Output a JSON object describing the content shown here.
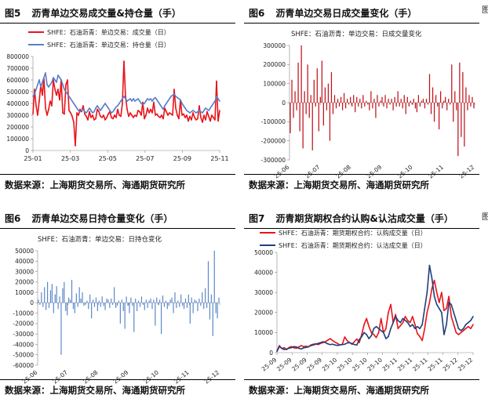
{
  "page": {
    "edge_marks": [
      "图",
      "图"
    ]
  },
  "panels": [
    {
      "fig_no": "图5",
      "title": "沥青单边交易成交量&持仓量（手）",
      "source": "数据来源：上海期货交易所、海通期货研究所",
      "chart_data": {
        "type": "line",
        "legend": [
          "SHFE：石油沥青：单边交易：成交量（日）",
          "SHFE：石油沥青：单边交易：持仓量（日）"
        ],
        "legend_position": "top-left",
        "colors": [
          "#e8141a",
          "#5b7ec6"
        ],
        "ylim": [
          0,
          800000
        ],
        "yticks": [
          0,
          100000,
          200000,
          300000,
          400000,
          500000,
          600000,
          700000,
          800000
        ],
        "xticks": [
          "25-01",
          "25-03",
          "25-05",
          "25-07",
          "25-09",
          "25-11"
        ],
        "grid": false,
        "series": [
          {
            "name": "SHFE：石油沥青：单边交易：成交量（日）",
            "values": [
              310000,
              520000,
              380000,
              300000,
              420000,
              560000,
              470000,
              610000,
              360000,
              300000,
              350000,
              420000,
              380000,
              600000,
              520000,
              470000,
              520000,
              430000,
              600000,
              320000,
              310000,
              560000,
              600000,
              340000,
              320000,
              290000,
              240000,
              40000,
              320000,
              300000,
              350000,
              330000,
              380000,
              310000,
              290000,
              260000,
              330000,
              280000,
              300000,
              260000,
              270000,
              350000,
              330000,
              290000,
              280000,
              300000,
              260000,
              280000,
              310000,
              330000,
              280000,
              270000,
              300000,
              280000,
              350000,
              300000,
              290000,
              400000,
              760000,
              460000,
              350000,
              290000,
              320000,
              300000,
              280000,
              300000,
              290000,
              340000,
              330000,
              300000,
              410000,
              270000,
              300000,
              360000,
              320000,
              350000,
              320000,
              410000,
              300000,
              310000,
              290000,
              280000,
              300000,
              270000,
              360000,
              330000,
              300000,
              320000,
              310000,
              300000,
              520000,
              360000,
              300000,
              270000,
              430000,
              300000,
              310000,
              280000,
              300000,
              250000,
              290000,
              260000,
              320000,
              280000,
              260000,
              270000,
              380000,
              280000,
              240000,
              300000,
              260000,
              330000,
              290000,
              250000,
              300000,
              280000,
              260000,
              590000,
              250000,
              340000
            ]
          },
          {
            "name": "SHFE：石油沥青：单边交易：持仓量（日）",
            "values": [
              460000,
              480000,
              520000,
              560000,
              600000,
              540000,
              580000,
              620000,
              660000,
              560000,
              540000,
              560000,
              580000,
              620000,
              600000,
              580000,
              640000,
              620000,
              600000,
              560000,
              520000,
              500000,
              480000,
              460000,
              440000,
              420000,
              400000,
              380000,
              360000,
              340000,
              330000,
              340000,
              350000,
              330000,
              320000,
              340000,
              360000,
              340000,
              320000,
              330000,
              360000,
              380000,
              360000,
              340000,
              360000,
              380000,
              400000,
              380000,
              360000,
              340000,
              320000,
              330000,
              350000,
              370000,
              380000,
              400000,
              420000,
              440000,
              460000,
              440000,
              420000,
              430000,
              440000,
              420000,
              440000,
              420000,
              430000,
              440000,
              420000,
              400000,
              390000,
              400000,
              420000,
              440000,
              430000,
              440000,
              420000,
              440000,
              450000,
              430000,
              410000,
              390000,
              370000,
              350000,
              380000,
              400000,
              420000,
              440000,
              460000,
              470000,
              480000,
              460000,
              450000,
              440000,
              430000,
              400000,
              380000,
              360000,
              340000,
              330000,
              320000,
              330000,
              340000,
              330000,
              320000,
              330000,
              340000,
              330000,
              320000,
              340000,
              360000,
              350000,
              340000,
              360000,
              380000,
              400000,
              420000,
              460000,
              440000,
              420000
            ]
          }
        ]
      }
    },
    {
      "fig_no": "图6",
      "title": "沥青单边交易日成交量变化（手）",
      "source": "数据来源：上海期货交易所、海通期货研究所",
      "chart_data": {
        "type": "bar",
        "legend": [
          "SHFE：石油沥青：单边交易：日成交量变化"
        ],
        "legend_position": "top-center",
        "colors": [
          "#c0141c"
        ],
        "ylim": [
          -300000,
          300000
        ],
        "yticks": [
          -300000,
          -200000,
          -100000,
          0,
          100000,
          200000,
          300000
        ],
        "xticks": [
          "25-06",
          "25-07",
          "25-08",
          "25-09",
          "25-10",
          "25-11",
          "25-12"
        ],
        "grid": false,
        "series": [
          {
            "name": "SHFE：石油沥青：单边交易：日成交量变化",
            "values": [
              -160000,
              120000,
              -80000,
              60000,
              -40000,
              210000,
              -150000,
              300000,
              -240000,
              60000,
              -60000,
              200000,
              -80000,
              40000,
              -250000,
              120000,
              -20000,
              180000,
              -150000,
              30000,
              220000,
              -120000,
              80000,
              -40000,
              100000,
              -200000,
              160000,
              -60000,
              40000,
              -30000,
              20000,
              -20000,
              30000,
              -40000,
              50000,
              -30000,
              20000,
              -10000,
              30000,
              -20000,
              40000,
              -50000,
              30000,
              -20000,
              20000,
              -30000,
              40000,
              -20000,
              10000,
              -10000,
              -40000,
              60000,
              -30000,
              20000,
              -80000,
              40000,
              -20000,
              10000,
              30000,
              -20000,
              40000,
              -30000,
              20000,
              -10000,
              20000,
              -40000,
              30000,
              -20000,
              60000,
              -20000,
              20000,
              -30000,
              40000,
              -60000,
              30000,
              -20000,
              10000,
              -10000,
              20000,
              -30000,
              -50000,
              40000,
              -20000,
              10000,
              20000,
              -30000,
              20000,
              -10000,
              150000,
              -60000,
              80000,
              -100000,
              40000,
              -20000,
              -140000,
              60000,
              -30000,
              10000,
              30000,
              -40000,
              20000,
              -10000,
              200000,
              -100000,
              60000,
              -40000,
              -280000,
              210000,
              -180000,
              160000,
              -230000,
              80000,
              -40000,
              40000,
              -20000,
              30000,
              -30000
            ]
          }
        ]
      }
    },
    {
      "fig_no": "图6",
      "title": "沥青单边交易日持仓量变化（手）",
      "source": "数据来源：上海期货交易所、海通期货研究所",
      "chart_data": {
        "type": "bar",
        "legend": [
          "SHFE：石油沥青：单边交易：日持仓变化"
        ],
        "legend_position": "top-left",
        "colors": [
          "#5b88c8"
        ],
        "ylim": [
          -60000,
          50000
        ],
        "yticks": [
          -60000,
          -50000,
          -40000,
          -30000,
          -20000,
          -10000,
          0,
          10000,
          20000,
          30000,
          40000,
          50000
        ],
        "xticks": [
          "25-06",
          "25-07",
          "25-08",
          "25-09",
          "25-10",
          "25-11",
          "25-12"
        ],
        "grid": false,
        "series": [
          {
            "name": "SHFE：石油沥青：单边交易：日持仓变化",
            "values": [
              3000,
              -2000,
              10000,
              -4000,
              15000,
              -7000,
              20000,
              -5000,
              12000,
              18000,
              -10000,
              8000,
              16000,
              -6000,
              6000,
              -50000,
              14000,
              20000,
              -8000,
              -12000,
              5000,
              3000,
              22000,
              -6000,
              -10000,
              9000,
              -4000,
              15000,
              4000,
              10000,
              -3000,
              -2000,
              2000,
              -6000,
              8000,
              -15000,
              3000,
              -4000,
              5000,
              -8000,
              2000,
              -4000,
              6000,
              -3000,
              -7000,
              4000,
              3000,
              -5000,
              4000,
              -2000,
              15000,
              -5000,
              -3000,
              2000,
              -20000,
              3000,
              -8000,
              -25000,
              6000,
              -3000,
              -10000,
              5000,
              -3000,
              -28000,
              4000,
              -8000,
              2000,
              -4000,
              6000,
              -2000,
              -7000,
              3000,
              -5000,
              2000,
              4000,
              -6000,
              3000,
              -22000,
              5000,
              -2000,
              3000,
              -30000,
              7000,
              -4000,
              2000,
              -6000,
              -3000,
              3000,
              5000,
              -10000,
              10000,
              -5000,
              2000,
              -4000,
              8000,
              -3000,
              -6000,
              4000,
              -5000,
              8000,
              -20000,
              5000,
              -10000,
              3000,
              2000,
              -8000,
              4000,
              -3000,
              10000,
              -6000,
              14000,
              -5000,
              40000,
              -16000,
              8000,
              -32000,
              50000,
              -10000,
              -15000,
              5000
            ]
          }
        ]
      }
    },
    {
      "fig_no": "图7",
      "title": "沥青期货期权合约认购&认沽成交量（手）",
      "source": "数据来源：上海期货交易所、海通期货研究所",
      "chart_data": {
        "type": "line",
        "legend": [
          "SHFE：石油沥青：期货期权合约：认购成交量（日）",
          "SHFE：石油沥青：期货期权合约：认沽成交量（日）"
        ],
        "legend_position": "top-left",
        "colors": [
          "#e8141a",
          "#1f3f7a"
        ],
        "ylim": [
          0,
          50000
        ],
        "yticks": [
          0,
          10000,
          20000,
          30000,
          40000,
          50000
        ],
        "xticks": [
          "25-09",
          "25-09",
          "25-09",
          "25-09",
          "25-10",
          "25-10",
          "25-10",
          "25-10",
          "25-11",
          "25-11",
          "25-11",
          "25-11",
          "25-12",
          "25-12"
        ],
        "grid": false,
        "series": [
          {
            "name": "SHFE：石油沥青：期货期权合约：认购成交量（日）",
            "values": [
              800,
              3500,
              2000,
              2500,
              1500,
              2600,
              3000,
              2400,
              2200,
              2800,
              3500,
              3000,
              3200,
              2800,
              3800,
              4200,
              4400,
              4000,
              4600,
              5000,
              5500,
              6200,
              7000,
              6000,
              5200,
              4600,
              3800,
              4200,
              7800,
              6000,
              5000,
              4200,
              5500,
              6800,
              5000,
              9000,
              14000,
              17000,
              13000,
              10000,
              9000,
              7500,
              10000,
              17000,
              10000,
              12000,
              20000,
              24000,
              15000,
              19000,
              12000,
              13500,
              15000,
              18000,
              16000,
              15000,
              18000,
              14000,
              9500,
              8000,
              6000,
              12000,
              20000,
              25000,
              32000,
              36000,
              30000,
              25000,
              30000,
              21000,
              22000,
              28000,
              18000,
              14000,
              10000,
              9000,
              10000,
              11000,
              12000,
              13000,
              12000,
              14000
            ]
          },
          {
            "name": "SHFE：石油沥青：期货期权合约：认沽成交量（日）",
            "values": [
              600,
              3000,
              2200,
              1500,
              1800,
              2200,
              2500,
              3000,
              2800,
              2200,
              1800,
              2400,
              2600,
              3000,
              3500,
              3800,
              4200,
              4600,
              5000,
              5400,
              5000,
              4400,
              4000,
              4200,
              3800,
              3600,
              3800,
              4000,
              4200,
              4800,
              5000,
              4500,
              4000,
              3800,
              6500,
              8000,
              10000,
              9000,
              7000,
              8500,
              12000,
              13000,
              12000,
              11000,
              10000,
              7000,
              8000,
              12000,
              15000,
              18000,
              16000,
              15000,
              17000,
              16000,
              15000,
              13000,
              14000,
              12000,
              13000,
              12000,
              14000,
              22000,
              30000,
              43500,
              37000,
              28000,
              24000,
              22000,
              20000,
              9000,
              14000,
              25000,
              24000,
              20000,
              16000,
              12000,
              11000,
              12000,
              14000,
              15000,
              16000,
              18000
            ]
          }
        ]
      }
    }
  ]
}
